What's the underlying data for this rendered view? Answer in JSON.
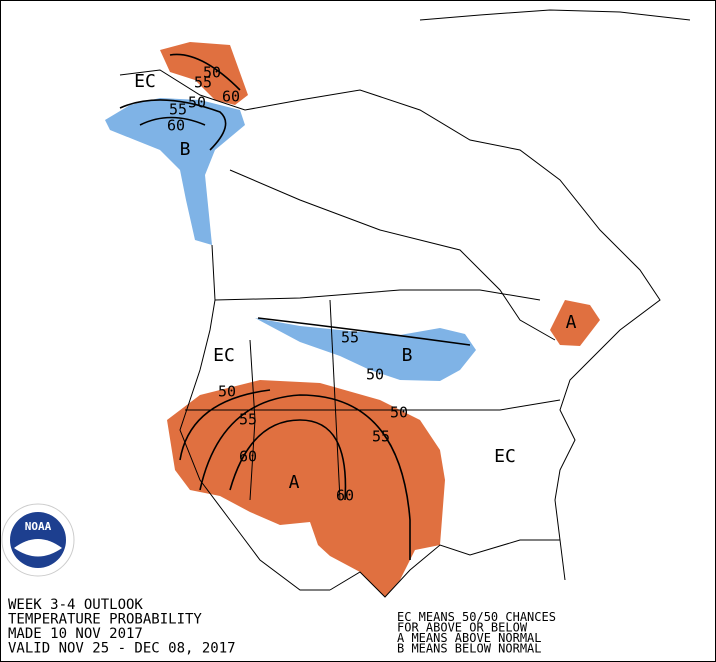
{
  "outlook": {
    "lines": [
      "WEEK 3-4 OUTLOOK",
      "TEMPERATURE PROBABILITY",
      "MADE  10 NOV 2017",
      "VALID  NOV 25 - DEC 08, 2017"
    ]
  },
  "legend": {
    "lines": [
      "EC MEANS 50/50 CHANCES",
      "FOR ABOVE OR BELOW",
      "A MEANS ABOVE NORMAL",
      "B MEANS BELOW NORMAL"
    ]
  },
  "logo": {
    "text": "NOAA"
  },
  "map_labels": [
    "EC",
    "55",
    "50",
    "60",
    "B",
    "50",
    "55",
    "60",
    "55",
    "B",
    "50",
    "A",
    "EC",
    "50",
    "55",
    "60",
    "A",
    "60",
    "55",
    "50",
    "EC"
  ]
}
